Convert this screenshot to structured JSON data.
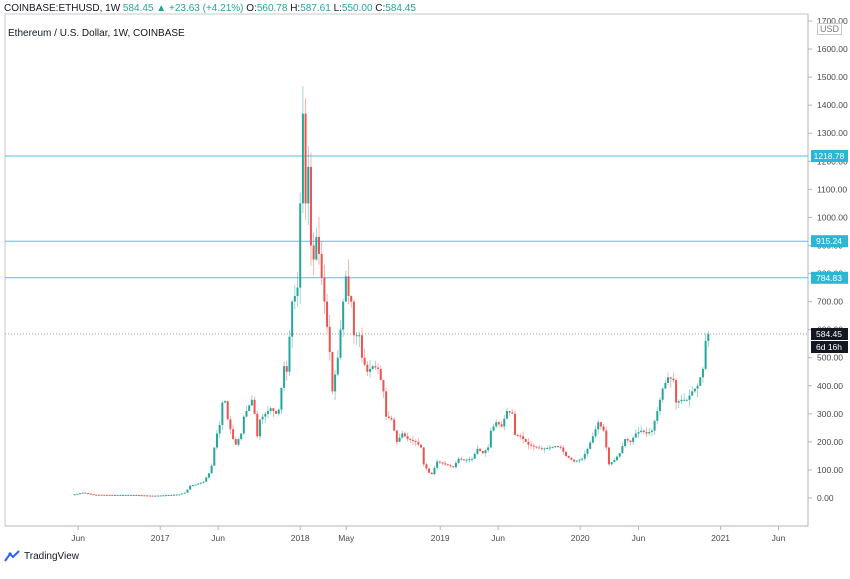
{
  "header": {
    "symbol": "COINBASE:ETHUSD, 1W",
    "last": "584.45",
    "change": "+23.63 (+4.21%)",
    "o_label": "O:",
    "o": "560.78",
    "h_label": "H:",
    "h": "587.61",
    "l_label": "L:",
    "l": "550.00",
    "c_label": "C:",
    "c": "584.45"
  },
  "subtitle": "Ethereum / U.S. Dollar, 1W, COINBASE",
  "currency": "USD",
  "branding": "TradingView",
  "countdown": "6d 16h",
  "colors": {
    "up": "#26a69a",
    "down": "#ef5350",
    "hline": "#4fc3e8",
    "price": "#000000",
    "grid": "#eeeeee"
  },
  "chart_data": {
    "type": "candlestick",
    "y_axis": {
      "min": 0,
      "max": 1700,
      "ticks": [
        0,
        100,
        200,
        300,
        400,
        500,
        600,
        700,
        800,
        900,
        1000,
        1100,
        1200,
        1300,
        1400,
        1500,
        1600,
        1700
      ],
      "tick_labels": [
        "0.00",
        "100.00",
        "200.00",
        "300.00",
        "400.00",
        "500.00",
        "600.00",
        "700.00",
        "800.00",
        "900.00",
        "1000.00",
        "1100.00",
        "1200.00",
        "1300.00",
        "1400.00",
        "1500.00",
        "1600.00",
        "1700.00"
      ]
    },
    "x_axis": {
      "start": "2016-05-16",
      "end": "2021-07-01",
      "ticks": [
        {
          "label": "Jun",
          "date": "2016-06-01"
        },
        {
          "label": "2017",
          "date": "2017-01-01"
        },
        {
          "label": "Jun",
          "date": "2017-06-01"
        },
        {
          "label": "2018",
          "date": "2018-01-01"
        },
        {
          "label": "May",
          "date": "2018-05-01"
        },
        {
          "label": "2019",
          "date": "2019-01-01"
        },
        {
          "label": "Jun",
          "date": "2019-06-01"
        },
        {
          "label": "2020",
          "date": "2020-01-01"
        },
        {
          "label": "Jun",
          "date": "2020-06-01"
        },
        {
          "label": "2021",
          "date": "2021-01-01"
        },
        {
          "label": "Jun",
          "date": "2021-06-01"
        }
      ]
    },
    "horizontal_levels": [
      {
        "value": 1218.78,
        "label": "1218.78"
      },
      {
        "value": 915.24,
        "label": "915.24"
      },
      {
        "value": 784.83,
        "label": "784.83"
      }
    ],
    "last_price": {
      "value": 584.45,
      "label": "584.45"
    },
    "anchors": [
      [
        "2016-05-23",
        13
      ],
      [
        "2016-06-13",
        19
      ],
      [
        "2016-07-11",
        12
      ],
      [
        "2016-08-29",
        11
      ],
      [
        "2016-10-24",
        11
      ],
      [
        "2016-12-12",
        8
      ],
      [
        "2017-01-16",
        10
      ],
      [
        "2017-02-20",
        13
      ],
      [
        "2017-03-06",
        19
      ],
      [
        "2017-03-13",
        30
      ],
      [
        "2017-03-20",
        44
      ],
      [
        "2017-04-03",
        48
      ],
      [
        "2017-04-24",
        58
      ],
      [
        "2017-05-08",
        88
      ],
      [
        "2017-05-15",
        115
      ],
      [
        "2017-05-22",
        180
      ],
      [
        "2017-05-29",
        230
      ],
      [
        "2017-06-05",
        260
      ],
      [
        "2017-06-12",
        340
      ],
      [
        "2017-06-19",
        345
      ],
      [
        "2017-06-26",
        280
      ],
      [
        "2017-07-10",
        210
      ],
      [
        "2017-07-17",
        190
      ],
      [
        "2017-07-31",
        230
      ],
      [
        "2017-08-07",
        290
      ],
      [
        "2017-08-21",
        330
      ],
      [
        "2017-08-28",
        350
      ],
      [
        "2017-09-04",
        300
      ],
      [
        "2017-09-11",
        220
      ],
      [
        "2017-09-18",
        280
      ],
      [
        "2017-10-02",
        300
      ],
      [
        "2017-10-16",
        320
      ],
      [
        "2017-10-30",
        300
      ],
      [
        "2017-11-06",
        315
      ],
      [
        "2017-11-20",
        470
      ],
      [
        "2017-11-27",
        450
      ],
      [
        "2017-12-11",
        700
      ],
      [
        "2017-12-18",
        720
      ],
      [
        "2017-12-25",
        750
      ],
      [
        "2018-01-01",
        1050
      ],
      [
        "2018-01-08",
        1370
      ],
      [
        "2018-01-15",
        1050
      ],
      [
        "2018-01-22",
        1180
      ],
      [
        "2018-01-29",
        900
      ],
      [
        "2018-02-05",
        850
      ],
      [
        "2018-02-12",
        930
      ],
      [
        "2018-02-19",
        870
      ],
      [
        "2018-03-05",
        700
      ],
      [
        "2018-03-12",
        610
      ],
      [
        "2018-03-19",
        520
      ],
      [
        "2018-03-26",
        380
      ],
      [
        "2018-04-09",
        500
      ],
      [
        "2018-04-16",
        600
      ],
      [
        "2018-04-23",
        700
      ],
      [
        "2018-04-30",
        790
      ],
      [
        "2018-05-07",
        720
      ],
      [
        "2018-05-14",
        700
      ],
      [
        "2018-05-21",
        580
      ],
      [
        "2018-06-04",
        580
      ],
      [
        "2018-06-11",
        500
      ],
      [
        "2018-06-25",
        450
      ],
      [
        "2018-07-09",
        470
      ],
      [
        "2018-07-23",
        460
      ],
      [
        "2018-08-06",
        380
      ],
      [
        "2018-08-13",
        290
      ],
      [
        "2018-08-27",
        280
      ],
      [
        "2018-09-10",
        200
      ],
      [
        "2018-09-24",
        230
      ],
      [
        "2018-10-08",
        210
      ],
      [
        "2018-10-29",
        200
      ],
      [
        "2018-11-12",
        180
      ],
      [
        "2018-11-19",
        120
      ],
      [
        "2018-12-03",
        90
      ],
      [
        "2018-12-10",
        85
      ],
      [
        "2018-12-24",
        130
      ],
      [
        "2019-01-14",
        120
      ],
      [
        "2019-02-04",
        110
      ],
      [
        "2019-02-18",
        140
      ],
      [
        "2019-03-04",
        135
      ],
      [
        "2019-03-25",
        140
      ],
      [
        "2019-04-08",
        175
      ],
      [
        "2019-04-22",
        160
      ],
      [
        "2019-05-06",
        180
      ],
      [
        "2019-05-13",
        240
      ],
      [
        "2019-05-27",
        270
      ],
      [
        "2019-06-10",
        255
      ],
      [
        "2019-06-24",
        310
      ],
      [
        "2019-07-08",
        300
      ],
      [
        "2019-07-15",
        225
      ],
      [
        "2019-07-29",
        220
      ],
      [
        "2019-08-19",
        190
      ],
      [
        "2019-09-09",
        180
      ],
      [
        "2019-09-23",
        175
      ],
      [
        "2019-10-14",
        180
      ],
      [
        "2019-10-28",
        185
      ],
      [
        "2019-11-11",
        180
      ],
      [
        "2019-11-25",
        150
      ],
      [
        "2019-12-16",
        130
      ],
      [
        "2020-01-06",
        140
      ],
      [
        "2020-01-20",
        175
      ],
      [
        "2020-02-03",
        220
      ],
      [
        "2020-02-17",
        270
      ],
      [
        "2020-03-02",
        240
      ],
      [
        "2020-03-16",
        120
      ],
      [
        "2020-03-30",
        135
      ],
      [
        "2020-04-13",
        160
      ],
      [
        "2020-04-27",
        210
      ],
      [
        "2020-05-11",
        200
      ],
      [
        "2020-05-25",
        230
      ],
      [
        "2020-06-08",
        240
      ],
      [
        "2020-06-22",
        230
      ],
      [
        "2020-07-06",
        240
      ],
      [
        "2020-07-20",
        310
      ],
      [
        "2020-08-03",
        390
      ],
      [
        "2020-08-17",
        430
      ],
      [
        "2020-08-31",
        420
      ],
      [
        "2020-09-07",
        340
      ],
      [
        "2020-09-21",
        350
      ],
      [
        "2020-10-05",
        350
      ],
      [
        "2020-10-19",
        380
      ],
      [
        "2020-11-02",
        400
      ],
      [
        "2020-11-16",
        460
      ],
      [
        "2020-11-23",
        560
      ],
      [
        "2020-11-30",
        584
      ]
    ]
  }
}
